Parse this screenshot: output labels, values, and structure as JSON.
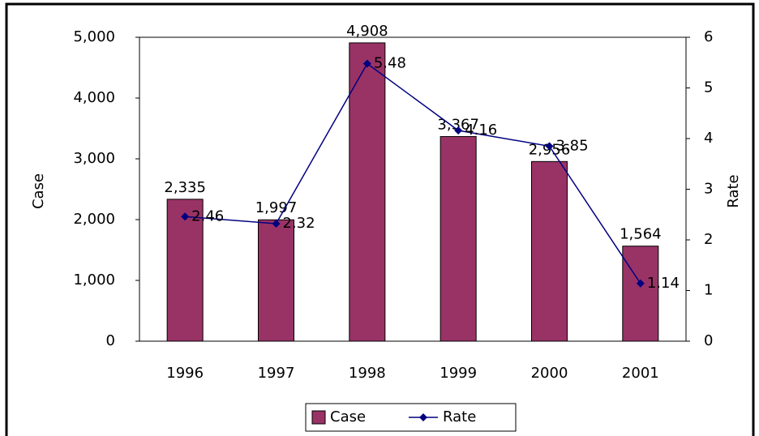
{
  "chart_data": {
    "type": "bar",
    "categories": [
      "1996",
      "1997",
      "1998",
      "1999",
      "2000",
      "2001"
    ],
    "series": [
      {
        "name": "Case",
        "color": "#993366",
        "values": [
          2335,
          1997,
          4908,
          3367,
          2956,
          1564
        ],
        "value_labels": [
          "2,335",
          "1,997",
          "4,908",
          "3,367",
          "2,956",
          "1,564"
        ]
      },
      {
        "name": "Rate",
        "color": "#000080",
        "type": "line",
        "axis": "y2",
        "values": [
          2.46,
          2.32,
          5.48,
          4.16,
          3.85,
          1.14
        ]
      }
    ],
    "ylabel": "Case",
    "y2label": "Rate",
    "ylim": [
      0,
      5000
    ],
    "yticks": [
      0,
      {
        "value": 1000,
        "label": "1,000"
      },
      {
        "value": 2000,
        "label": "2,000"
      },
      {
        "value": 3000,
        "label": "3,000"
      },
      {
        "value": 4000,
        "label": "4,000"
      },
      {
        "value": 5000,
        "label": "5,000"
      }
    ],
    "y2lim": [
      0,
      6
    ],
    "y2ticks": [
      0,
      1,
      2,
      3,
      4,
      5,
      6
    ],
    "grid": false,
    "legend": "bottom"
  }
}
